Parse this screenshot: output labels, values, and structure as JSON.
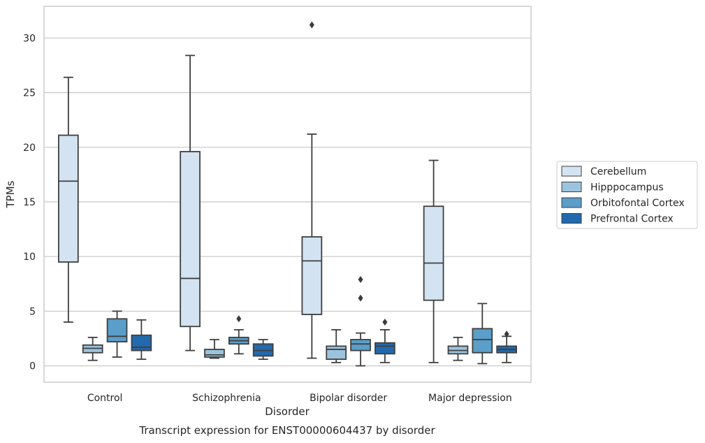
{
  "chart_data": {
    "type": "box",
    "xlabel": "Disorder",
    "ylabel": "TPMs",
    "caption": "Transcript expression for ENST00000604437 by disorder",
    "ylim": [
      -1.5,
      32.9
    ],
    "yticks": [
      0,
      5,
      10,
      15,
      20,
      25,
      30
    ],
    "grid": "horizontal",
    "legend_position": "right",
    "categories": [
      "Control",
      "Schizophrenia",
      "Bipolar disorder",
      "Major depression"
    ],
    "series": [
      {
        "name": "Cerebellum",
        "color": "#d3e3f2",
        "boxes": [
          {
            "whislo": 4.0,
            "q1": 9.5,
            "med": 16.9,
            "q3": 21.1,
            "whishi": 26.4,
            "fliers": []
          },
          {
            "whislo": 1.4,
            "q1": 3.6,
            "med": 8.0,
            "q3": 19.6,
            "whishi": 28.4,
            "fliers": []
          },
          {
            "whislo": 0.7,
            "q1": 4.7,
            "med": 9.6,
            "q3": 11.8,
            "whishi": 21.2,
            "fliers": [
              31.2
            ]
          },
          {
            "whislo": 0.3,
            "q1": 6.0,
            "med": 9.4,
            "q3": 14.6,
            "whishi": 18.8,
            "fliers": []
          }
        ]
      },
      {
        "name": "Hipppocampus",
        "color": "#9cc3de",
        "boxes": [
          {
            "whislo": 0.5,
            "q1": 1.2,
            "med": 1.6,
            "q3": 1.9,
            "whishi": 2.6,
            "fliers": []
          },
          {
            "whislo": 0.7,
            "q1": 0.8,
            "med": 1.0,
            "q3": 1.5,
            "whishi": 2.4,
            "fliers": []
          },
          {
            "whislo": 0.3,
            "q1": 0.6,
            "med": 1.5,
            "q3": 1.8,
            "whishi": 3.3,
            "fliers": []
          },
          {
            "whislo": 0.5,
            "q1": 1.1,
            "med": 1.4,
            "q3": 1.8,
            "whishi": 2.6,
            "fliers": []
          }
        ]
      },
      {
        "name": "Orbitofontal Cortex",
        "color": "#5a9ec9",
        "boxes": [
          {
            "whislo": 0.8,
            "q1": 2.2,
            "med": 2.7,
            "q3": 4.3,
            "whishi": 5.0,
            "fliers": []
          },
          {
            "whislo": 1.1,
            "q1": 2.0,
            "med": 2.3,
            "q3": 2.6,
            "whishi": 3.3,
            "fliers": [
              4.3
            ]
          },
          {
            "whislo": 0.0,
            "q1": 1.4,
            "med": 2.0,
            "q3": 2.4,
            "whishi": 3.0,
            "fliers": [
              6.2,
              7.9
            ]
          },
          {
            "whislo": 0.2,
            "q1": 1.2,
            "med": 2.4,
            "q3": 3.4,
            "whishi": 5.7,
            "fliers": []
          }
        ]
      },
      {
        "name": "Prefrontal Cortex",
        "color": "#2369ad",
        "boxes": [
          {
            "whislo": 0.6,
            "q1": 1.4,
            "med": 1.7,
            "q3": 2.8,
            "whishi": 4.2,
            "fliers": []
          },
          {
            "whislo": 0.6,
            "q1": 0.9,
            "med": 1.4,
            "q3": 2.0,
            "whishi": 2.4,
            "fliers": []
          },
          {
            "whislo": 0.3,
            "q1": 1.1,
            "med": 1.8,
            "q3": 2.1,
            "whishi": 3.3,
            "fliers": [
              4.0
            ]
          },
          {
            "whislo": 0.3,
            "q1": 1.2,
            "med": 1.5,
            "q3": 1.8,
            "whishi": 2.7,
            "fliers": [
              2.9
            ]
          }
        ]
      }
    ]
  }
}
